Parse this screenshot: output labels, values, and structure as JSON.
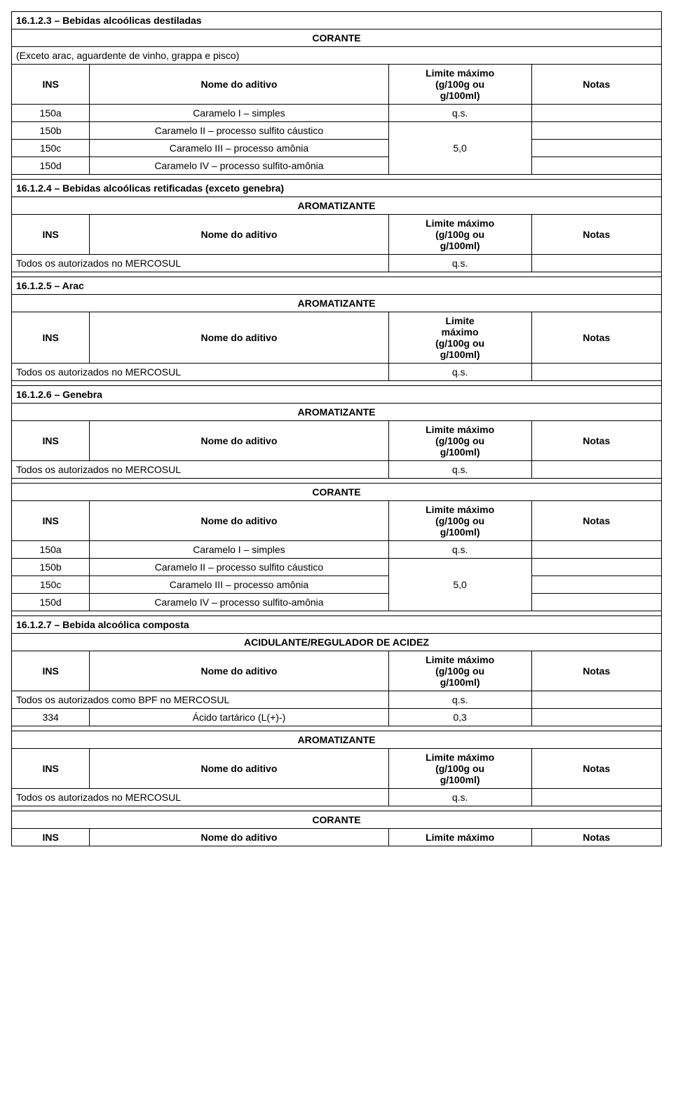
{
  "labels": {
    "ins": "INS",
    "nome": "Nome do aditivo",
    "limite_full": "Limite máximo\n(g/100g ou\ng/100ml)",
    "limite_short": "Limite\nmáximo\n(g/100g ou\ng/100ml)",
    "limite_inline": "Limite máximo",
    "notas": "Notas",
    "corante": "CORANTE",
    "aromatizante": "AROMATIZANTE",
    "acidulante": "ACIDULANTE/REGULADOR DE ACIDEZ",
    "todos_auth": "Todos os autorizados no MERCOSUL",
    "todos_auth_bpf": "Todos os autorizados como BPF no MERCOSUL",
    "qs": "q.s."
  },
  "sections": {
    "s3": {
      "title": "16.1.2.3 – Bebidas alcoólicas destiladas",
      "note": "(Exceto arac, aguardente de vinho, grappa e pisco)"
    },
    "s4": {
      "title": "16.1.2.4 – Bebidas alcoólicas retificadas (exceto genebra)"
    },
    "s5": {
      "title": "16.1.2.5 – Arac"
    },
    "s6": {
      "title": "16.1.2.6 – Genebra"
    },
    "s7": {
      "title": "16.1.2.7 – Bebida alcoólica composta"
    }
  },
  "caramelo": {
    "r150a": {
      "code": "150a",
      "name": "Caramelo I – simples",
      "val": "q.s."
    },
    "r150b": {
      "code": "150b",
      "name": "Caramelo II – processo sulfito cáustico"
    },
    "r150c": {
      "code": "150c",
      "name": "Caramelo III – processo amônia"
    },
    "r150d": {
      "code": "150d",
      "name": "Caramelo IV – processo sulfito-amônia"
    },
    "val50": "5,0"
  },
  "s7rows": {
    "r334": {
      "code": "334",
      "name": "Ácido tartárico (L(+)-)",
      "val": "0,3"
    }
  },
  "style": {
    "background": "#ffffff",
    "border_color": "#000000",
    "text_color": "#000000",
    "font_size_pt": 11,
    "font_family": "Arial"
  }
}
